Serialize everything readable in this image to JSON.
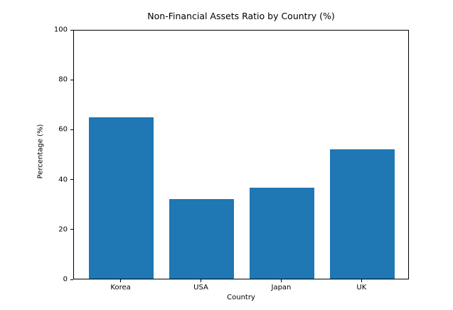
{
  "chart_data": {
    "type": "bar",
    "title": "Non-Financial Assets Ratio by Country (%)",
    "xlabel": "Country",
    "ylabel": "Percentage (%)",
    "categories": [
      "Korea",
      "USA",
      "Japan",
      "UK"
    ],
    "values": [
      64.6,
      32.0,
      36.5,
      51.8
    ],
    "ylim": [
      0,
      100
    ],
    "yticks": [
      0,
      20,
      40,
      60,
      80,
      100
    ],
    "bar_color": "#1f77b4",
    "axis_color": "#000000",
    "background_color": "#ffffff",
    "grid": false,
    "legend_position": "none"
  }
}
